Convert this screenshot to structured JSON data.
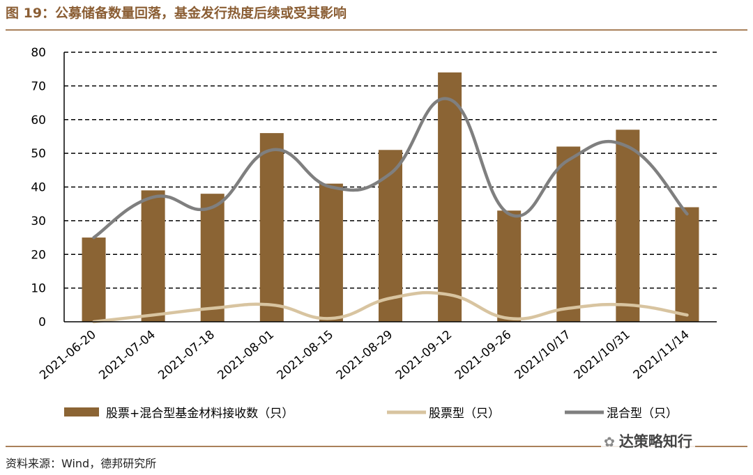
{
  "title": "图 19：公募储备数量回落，基金发行热度后续或受其影响",
  "source": "资料来源：Wind，德邦研究所",
  "watermark": "达策略知行",
  "colors": {
    "bar": "#8b6434",
    "stock_line": "#d8c4a0",
    "mixed_line": "#7f7f7f",
    "title": "#8b5e34"
  },
  "chart_data": {
    "type": "bar",
    "categories": [
      "2021-06-20",
      "2021-07-04",
      "2021-07-18",
      "2021-08-01",
      "2021-08-15",
      "2021-08-29",
      "2021-09-12",
      "2021-09-26",
      "2021/10/17",
      "2021/10/31",
      "2021/11/14"
    ],
    "series": [
      {
        "name": "股票+混合型基金材料接收数（只）",
        "type": "bar",
        "values": [
          25,
          39,
          38,
          56,
          41,
          51,
          74,
          33,
          52,
          57,
          34
        ]
      },
      {
        "name": "股票型（只）",
        "type": "line",
        "values": [
          0,
          2,
          4,
          5,
          1,
          7,
          8,
          1,
          4,
          5,
          2
        ]
      },
      {
        "name": "混合型（只）",
        "type": "line",
        "values": [
          25,
          37,
          34,
          51,
          40,
          44,
          66,
          32,
          48,
          52,
          32
        ]
      }
    ],
    "ylim": [
      0,
      80
    ],
    "yticks": [
      0,
      10,
      20,
      30,
      40,
      50,
      60,
      70,
      80
    ],
    "grid": true,
    "legend_position": "bottom"
  }
}
